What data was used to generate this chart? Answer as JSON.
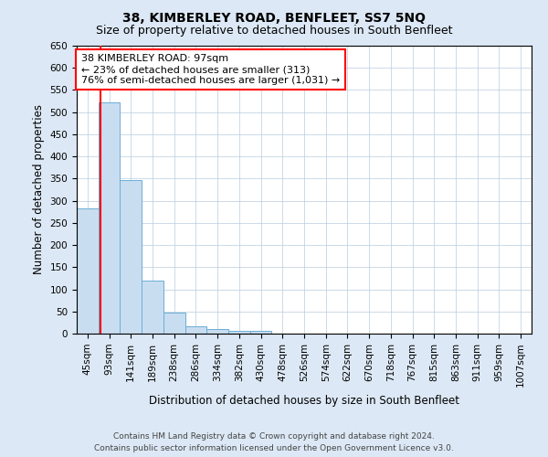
{
  "title": "38, KIMBERLEY ROAD, BENFLEET, SS7 5NQ",
  "subtitle": "Size of property relative to detached houses in South Benfleet",
  "xlabel": "Distribution of detached houses by size in South Benfleet",
  "ylabel": "Number of detached properties",
  "footer_line1": "Contains HM Land Registry data © Crown copyright and database right 2024.",
  "footer_line2": "Contains public sector information licensed under the Open Government Licence v3.0.",
  "bin_labels": [
    "45sqm",
    "93sqm",
    "141sqm",
    "189sqm",
    "238sqm",
    "286sqm",
    "334sqm",
    "382sqm",
    "430sqm",
    "478sqm",
    "526sqm",
    "574sqm",
    "622sqm",
    "670sqm",
    "718sqm",
    "767sqm",
    "815sqm",
    "863sqm",
    "911sqm",
    "959sqm",
    "1007sqm"
  ],
  "bar_heights": [
    282,
    523,
    347,
    120,
    48,
    17,
    11,
    6,
    7,
    1,
    0,
    0,
    0,
    0,
    0,
    0,
    0,
    0,
    0,
    0,
    0
  ],
  "bar_color": "#c9ddf0",
  "bar_edge_color": "#6baed6",
  "property_line_bin_index": 1.1,
  "annotation_line1": "38 KIMBERLEY ROAD: 97sqm",
  "annotation_line2": "← 23% of detached houses are smaller (313)",
  "annotation_line3": "76% of semi-detached houses are larger (1,031) →",
  "annotation_box_color": "white",
  "annotation_box_edge_color": "red",
  "vline_color": "red",
  "ylim": [
    0,
    650
  ],
  "yticks": [
    0,
    50,
    100,
    150,
    200,
    250,
    300,
    350,
    400,
    450,
    500,
    550,
    600,
    650
  ],
  "background_color": "#dce8f5",
  "plot_background_color": "white",
  "grid_color": "#b8ccde",
  "title_fontsize": 10,
  "subtitle_fontsize": 9,
  "axis_label_fontsize": 8.5,
  "tick_fontsize": 7.5,
  "annotation_fontsize": 8,
  "footer_fontsize": 6.5
}
